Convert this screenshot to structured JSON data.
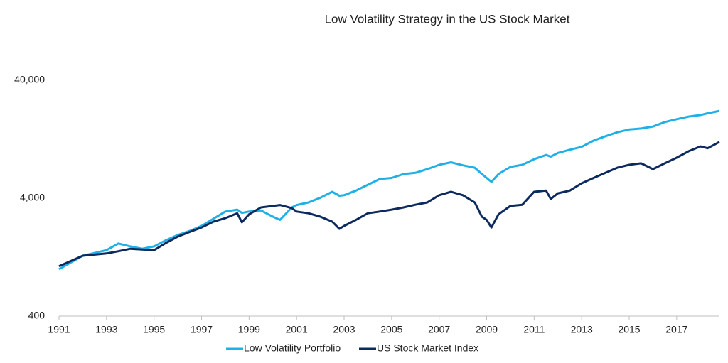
{
  "chart_data": {
    "type": "line",
    "title": "Low Volatility Strategy in the US Stock Market",
    "x": [
      1991,
      1992,
      1993,
      1993.5,
      1994,
      1994.5,
      1995,
      1995.5,
      1996,
      1996.5,
      1997,
      1997.5,
      1998,
      1998.5,
      1998.7,
      1999,
      1999.5,
      2000,
      2000.3,
      2000.8,
      2001,
      2001.5,
      2002,
      2002.5,
      2002.8,
      2003,
      2003.5,
      2004,
      2004.5,
      2005,
      2005.5,
      2006,
      2006.5,
      2007,
      2007.5,
      2008,
      2008.5,
      2008.8,
      2009,
      2009.2,
      2009.5,
      2010,
      2010.5,
      2011,
      2011.5,
      2011.7,
      2012,
      2012.5,
      2013,
      2013.5,
      2014,
      2014.5,
      2015,
      2015.5,
      2016,
      2016.5,
      2017,
      2017.5,
      2018,
      2018.3,
      2018.8
    ],
    "series": [
      {
        "name": "Low Volatility Portfolio",
        "color": "#1fb0e8",
        "values": [
          1000,
          1300,
          1450,
          1650,
          1560,
          1490,
          1560,
          1760,
          1950,
          2110,
          2330,
          2680,
          3080,
          3200,
          3000,
          3080,
          3150,
          2790,
          2620,
          3340,
          3500,
          3680,
          4040,
          4530,
          4200,
          4240,
          4640,
          5200,
          5820,
          5940,
          6410,
          6560,
          7050,
          7680,
          8060,
          7600,
          7250,
          6410,
          5940,
          5500,
          6410,
          7360,
          7680,
          8570,
          9300,
          9000,
          9680,
          10300,
          10900,
          12300,
          13400,
          14500,
          15300,
          15600,
          16200,
          17700,
          18700,
          19700,
          20300,
          21000,
          22000
        ]
      },
      {
        "name": "US Stock Market Index",
        "color": "#0d2a5e",
        "values": [
          1060,
          1300,
          1360,
          1420,
          1490,
          1470,
          1450,
          1670,
          1890,
          2070,
          2260,
          2530,
          2710,
          2980,
          2500,
          2920,
          3340,
          3440,
          3500,
          3300,
          3080,
          2980,
          2790,
          2530,
          2200,
          2330,
          2620,
          2980,
          3080,
          3200,
          3340,
          3520,
          3680,
          4240,
          4530,
          4240,
          3680,
          2790,
          2620,
          2260,
          2920,
          3440,
          3520,
          4530,
          4640,
          3940,
          4400,
          4640,
          5350,
          5940,
          6560,
          7250,
          7680,
          7900,
          7050,
          7900,
          8820,
          10000,
          11000,
          10600,
          12000
        ]
      }
    ],
    "xlim": [
      1991,
      2018.8
    ],
    "xticks": [
      1991,
      1993,
      1995,
      1997,
      1999,
      2001,
      2003,
      2005,
      2007,
      2009,
      2011,
      2013,
      2015,
      2017
    ],
    "ylim": [
      400,
      40000
    ],
    "y_log_scale": true,
    "yticks": [
      400,
      {
        "value": 4000,
        "label": "4,000"
      },
      {
        "value": 40000,
        "label": "40,000"
      }
    ],
    "grid": false,
    "legend": "bottom"
  }
}
